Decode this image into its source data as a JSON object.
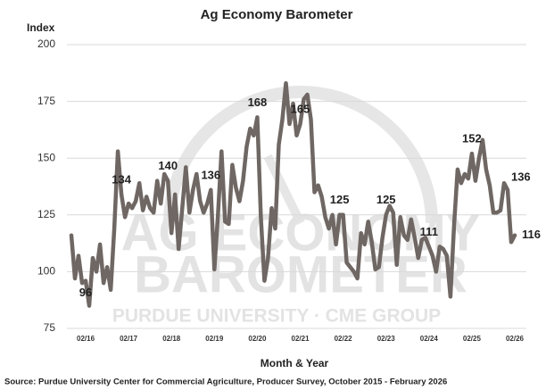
{
  "chart_data": {
    "type": "line",
    "title": "Ag Economy Barometer",
    "ylabel": "Index",
    "xlabel": "Month & Year",
    "source": "Source: Purdue University Center for Commercial Agriculture, Producer Survey, October 2015 - February 2026",
    "watermark": [
      "AG ECONOMY",
      "BAROMETER",
      "PURDUE UNIVERSITY · CME GROUP"
    ],
    "categories": [
      null,
      null,
      null,
      null,
      "02/16",
      null,
      null,
      null,
      null,
      null,
      null,
      null,
      null,
      null,
      null,
      null,
      "02/17",
      null,
      null,
      null,
      null,
      null,
      null,
      null,
      null,
      null,
      null,
      null,
      "02/18",
      null,
      null,
      null,
      null,
      null,
      null,
      null,
      null,
      null,
      null,
      null,
      "02/19",
      null,
      null,
      null,
      null,
      null,
      null,
      null,
      null,
      null,
      null,
      null,
      "02/20",
      null,
      null,
      null,
      null,
      null,
      null,
      null,
      null,
      null,
      null,
      null,
      "02/21",
      null,
      null,
      null,
      null,
      null,
      null,
      null,
      null,
      null,
      null,
      null,
      "02/22",
      null,
      null,
      null,
      null,
      null,
      null,
      null,
      null,
      null,
      null,
      null,
      "02/23",
      null,
      null,
      null,
      null,
      null,
      null,
      null,
      null,
      null,
      null,
      null,
      "02/24",
      null,
      null,
      null,
      null,
      null,
      null,
      null,
      null,
      null,
      null,
      null,
      "02/25",
      null,
      null,
      null,
      null,
      null,
      null,
      null,
      null,
      null,
      null,
      null,
      "02/26"
    ],
    "values": [
      116,
      97,
      107,
      95,
      96,
      85,
      106,
      100,
      112,
      95,
      102,
      92,
      119,
      153,
      134,
      124,
      130,
      128,
      131,
      139,
      127,
      133,
      128,
      126,
      140,
      130,
      143,
      140,
      117,
      134,
      110,
      128,
      146,
      126,
      136,
      143,
      131,
      126,
      130,
      136,
      101,
      125,
      153,
      122,
      121,
      147,
      137,
      131,
      140,
      155,
      163,
      160,
      168,
      124,
      96,
      106,
      128,
      119,
      156,
      167,
      183,
      165,
      174,
      160,
      165,
      176,
      178,
      167,
      135,
      138,
      133,
      124,
      119,
      125,
      112,
      125,
      125,
      104,
      102,
      100,
      97,
      117,
      112,
      122,
      113,
      101,
      102,
      115,
      125,
      129,
      126,
      103,
      124,
      116,
      114,
      123,
      115,
      106,
      114,
      115,
      111,
      107,
      100,
      111,
      110,
      107,
      89,
      120,
      145,
      139,
      143,
      141,
      152,
      140,
      150,
      158,
      145,
      138,
      126,
      126,
      127,
      139,
      136,
      113,
      116
    ],
    "value_labels": [
      null,
      null,
      null,
      null,
      "96",
      null,
      null,
      null,
      null,
      null,
      null,
      null,
      null,
      null,
      "134",
      null,
      null,
      null,
      null,
      null,
      null,
      null,
      null,
      null,
      null,
      null,
      null,
      "140",
      null,
      null,
      null,
      null,
      null,
      null,
      null,
      null,
      null,
      null,
      null,
      "136",
      null,
      null,
      null,
      null,
      null,
      null,
      null,
      null,
      null,
      null,
      null,
      null,
      "168",
      null,
      null,
      null,
      null,
      null,
      null,
      null,
      null,
      null,
      null,
      null,
      "165",
      null,
      null,
      null,
      null,
      null,
      null,
      null,
      null,
      null,
      null,
      "125",
      null,
      null,
      null,
      null,
      null,
      null,
      null,
      null,
      null,
      null,
      null,
      null,
      "125",
      null,
      null,
      null,
      null,
      null,
      null,
      null,
      null,
      null,
      null,
      null,
      "111",
      null,
      null,
      null,
      null,
      null,
      null,
      null,
      null,
      null,
      null,
      null,
      "152",
      null,
      null,
      null,
      null,
      null,
      null,
      null,
      null,
      null,
      "136",
      null,
      "116"
    ],
    "color": "#6f6763",
    "ylim": [
      75,
      200
    ],
    "yticks": [
      75,
      100,
      125,
      150,
      175,
      200
    ],
    "grid": true
  }
}
